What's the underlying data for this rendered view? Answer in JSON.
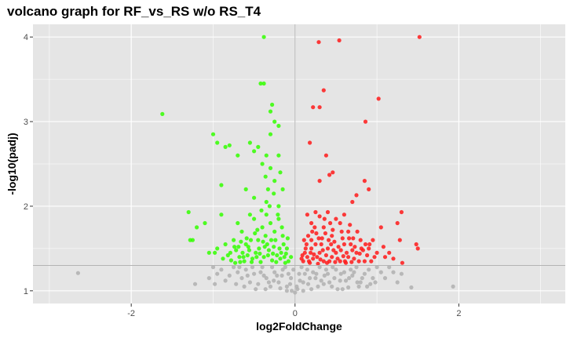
{
  "chart_data": {
    "type": "scatter",
    "title": "volcano graph for RF_vs_RS w/o RS_T4",
    "xlabel": "log2FoldChange",
    "ylabel": "-log10(padj)",
    "xlim": [
      -3.2,
      3.3
    ],
    "ylim": [
      0.85,
      4.15
    ],
    "x_ticks": [
      -2,
      0,
      2
    ],
    "y_ticks": [
      1,
      2,
      3,
      4
    ],
    "x_tick_labels": [
      "-2",
      "0",
      "2"
    ],
    "y_tick_labels": [
      "1",
      "2",
      "3",
      "4"
    ],
    "grid": true,
    "reference_lines": {
      "vertical_x": 0,
      "horizontal_y": 1.3
    },
    "colors": {
      "background": "#e5e5e5",
      "grid": "#ffffff",
      "reference": "#b3b3b3",
      "up": "#ff1a1a",
      "down": "#33ff00",
      "ns": "#b0b0b0"
    },
    "points": {
      "up": [
        [
          1.52,
          4.0
        ],
        [
          0.54,
          3.96
        ],
        [
          0.29,
          3.94
        ],
        [
          0.35,
          3.37
        ],
        [
          1.02,
          3.27
        ],
        [
          0.22,
          3.17
        ],
        [
          0.3,
          3.17
        ],
        [
          0.86,
          3.0
        ],
        [
          0.18,
          2.75
        ],
        [
          0.38,
          2.6
        ],
        [
          0.46,
          2.4
        ],
        [
          0.42,
          2.37
        ],
        [
          0.75,
          2.13
        ],
        [
          0.3,
          2.3
        ],
        [
          0.85,
          2.3
        ],
        [
          0.9,
          2.2
        ],
        [
          0.7,
          2.05
        ],
        [
          1.3,
          1.93
        ],
        [
          1.05,
          1.75
        ],
        [
          1.25,
          1.8
        ],
        [
          1.48,
          1.55
        ],
        [
          1.5,
          1.5
        ],
        [
          1.28,
          1.6
        ],
        [
          1.1,
          1.4
        ],
        [
          1.2,
          1.38
        ],
        [
          1.31,
          1.33
        ],
        [
          0.95,
          1.6
        ],
        [
          0.6,
          1.9
        ],
        [
          0.55,
          1.8
        ],
        [
          0.65,
          1.7
        ],
        [
          0.4,
          1.93
        ],
        [
          0.5,
          1.85
        ],
        [
          0.25,
          1.93
        ],
        [
          0.3,
          1.88
        ],
        [
          0.2,
          1.8
        ],
        [
          0.35,
          1.75
        ],
        [
          0.15,
          1.9
        ],
        [
          0.45,
          1.65
        ],
        [
          0.8,
          1.6
        ],
        [
          0.9,
          1.5
        ],
        [
          0.75,
          1.45
        ],
        [
          0.85,
          1.35
        ],
        [
          0.6,
          1.55
        ],
        [
          0.7,
          1.48
        ],
        [
          0.65,
          1.4
        ],
        [
          0.55,
          1.35
        ],
        [
          0.5,
          1.45
        ],
        [
          0.4,
          1.5
        ],
        [
          0.45,
          1.4
        ],
        [
          0.35,
          1.35
        ],
        [
          0.3,
          1.45
        ],
        [
          0.25,
          1.55
        ],
        [
          0.2,
          1.5
        ],
        [
          0.15,
          1.4
        ],
        [
          0.1,
          1.35
        ],
        [
          0.18,
          1.33
        ],
        [
          0.22,
          1.38
        ],
        [
          0.28,
          1.32
        ],
        [
          0.12,
          1.45
        ],
        [
          0.08,
          1.38
        ],
        [
          0.2,
          1.6
        ],
        [
          0.26,
          1.68
        ],
        [
          0.33,
          1.62
        ],
        [
          0.38,
          1.42
        ],
        [
          0.48,
          1.58
        ],
        [
          0.58,
          1.62
        ],
        [
          0.68,
          1.55
        ],
        [
          0.78,
          1.35
        ],
        [
          0.88,
          1.42
        ],
        [
          1.0,
          1.45
        ],
        [
          0.14,
          1.55
        ],
        [
          0.24,
          1.75
        ],
        [
          0.32,
          1.55
        ],
        [
          0.42,
          1.35
        ],
        [
          0.52,
          1.38
        ],
        [
          0.62,
          1.33
        ],
        [
          0.72,
          1.38
        ],
        [
          0.16,
          1.65
        ],
        [
          0.36,
          1.85
        ],
        [
          0.46,
          1.72
        ],
        [
          0.56,
          1.48
        ],
        [
          0.66,
          1.62
        ],
        [
          0.76,
          1.7
        ],
        [
          0.86,
          1.55
        ],
        [
          0.11,
          1.6
        ],
        [
          0.19,
          1.45
        ],
        [
          0.27,
          1.4
        ],
        [
          0.34,
          1.48
        ],
        [
          0.41,
          1.6
        ],
        [
          0.53,
          1.52
        ],
        [
          0.63,
          1.45
        ],
        [
          0.73,
          1.52
        ],
        [
          0.83,
          1.48
        ],
        [
          0.93,
          1.35
        ],
        [
          0.17,
          1.35
        ],
        [
          0.23,
          1.43
        ],
        [
          0.31,
          1.37
        ],
        [
          0.39,
          1.33
        ],
        [
          0.44,
          1.55
        ],
        [
          0.49,
          1.34
        ],
        [
          0.59,
          1.41
        ],
        [
          0.69,
          1.34
        ],
        [
          0.79,
          1.44
        ],
        [
          0.13,
          1.5
        ],
        [
          0.21,
          1.7
        ],
        [
          0.29,
          1.62
        ],
        [
          0.37,
          1.68
        ],
        [
          0.47,
          1.48
        ],
        [
          0.57,
          1.7
        ],
        [
          0.67,
          1.78
        ],
        [
          0.09,
          1.42
        ],
        [
          0.43,
          1.8
        ],
        [
          0.61,
          1.35
        ],
        [
          0.71,
          1.62
        ],
        [
          0.81,
          1.5
        ],
        [
          0.91,
          1.55
        ],
        [
          1.08,
          1.52
        ],
        [
          1.15,
          1.45
        ],
        [
          0.97,
          1.4
        ]
      ],
      "down": [
        [
          -0.38,
          4.0
        ],
        [
          -0.42,
          3.45
        ],
        [
          -0.38,
          3.45
        ],
        [
          -1.62,
          3.09
        ],
        [
          -0.28,
          3.2
        ],
        [
          -0.3,
          3.12
        ],
        [
          -0.25,
          3.0
        ],
        [
          -0.2,
          2.95
        ],
        [
          -0.3,
          2.85
        ],
        [
          -1.0,
          2.85
        ],
        [
          -0.95,
          2.75
        ],
        [
          -0.85,
          2.7
        ],
        [
          -0.8,
          2.72
        ],
        [
          -0.7,
          2.6
        ],
        [
          -0.55,
          2.75
        ],
        [
          -0.5,
          2.65
        ],
        [
          -0.45,
          2.7
        ],
        [
          -0.35,
          2.6
        ],
        [
          -0.2,
          2.6
        ],
        [
          -0.4,
          2.5
        ],
        [
          -0.3,
          2.45
        ],
        [
          -0.25,
          2.3
        ],
        [
          -0.15,
          2.2
        ],
        [
          -0.9,
          2.25
        ],
        [
          -0.6,
          2.2
        ],
        [
          -0.5,
          2.1
        ],
        [
          -0.35,
          2.05
        ],
        [
          -0.2,
          2.0
        ],
        [
          -1.3,
          1.93
        ],
        [
          -0.9,
          1.9
        ],
        [
          -1.1,
          1.8
        ],
        [
          -1.2,
          1.75
        ],
        [
          -1.25,
          1.6
        ],
        [
          -1.28,
          1.6
        ],
        [
          -0.98,
          1.45
        ],
        [
          -1.05,
          1.45
        ],
        [
          -0.95,
          1.5
        ],
        [
          -0.85,
          1.55
        ],
        [
          -0.75,
          1.6
        ],
        [
          -0.7,
          1.8
        ],
        [
          -0.65,
          1.7
        ],
        [
          -0.6,
          1.55
        ],
        [
          -0.55,
          1.9
        ],
        [
          -0.5,
          1.85
        ],
        [
          -0.45,
          1.6
        ],
        [
          -0.4,
          1.75
        ],
        [
          -0.35,
          1.9
        ],
        [
          -0.3,
          1.8
        ],
        [
          -0.25,
          1.7
        ],
        [
          -0.2,
          1.85
        ],
        [
          -0.15,
          1.65
        ],
        [
          -0.1,
          1.5
        ],
        [
          -0.05,
          1.4
        ],
        [
          -0.08,
          1.35
        ],
        [
          -0.12,
          1.33
        ],
        [
          -0.18,
          1.38
        ],
        [
          -0.22,
          1.42
        ],
        [
          -0.28,
          1.36
        ],
        [
          -0.32,
          1.48
        ],
        [
          -0.38,
          1.4
        ],
        [
          -0.42,
          1.34
        ],
        [
          -0.48,
          1.45
        ],
        [
          -0.52,
          1.38
        ],
        [
          -0.58,
          1.42
        ],
        [
          -0.62,
          1.35
        ],
        [
          -0.68,
          1.4
        ],
        [
          -0.72,
          1.48
        ],
        [
          -0.78,
          1.36
        ],
        [
          -0.82,
          1.42
        ],
        [
          -0.88,
          1.38
        ],
        [
          -0.14,
          1.55
        ],
        [
          -0.24,
          1.6
        ],
        [
          -0.34,
          1.55
        ],
        [
          -0.44,
          1.5
        ],
        [
          -0.54,
          1.6
        ],
        [
          -0.64,
          1.45
        ],
        [
          -0.74,
          1.52
        ],
        [
          -0.16,
          1.75
        ],
        [
          -0.26,
          1.52
        ],
        [
          -0.36,
          1.65
        ],
        [
          -0.46,
          1.72
        ],
        [
          -0.56,
          1.48
        ],
        [
          -0.66,
          1.58
        ],
        [
          -0.11,
          1.44
        ],
        [
          -0.19,
          1.5
        ],
        [
          -0.29,
          1.6
        ],
        [
          -0.39,
          1.58
        ],
        [
          -0.49,
          1.68
        ],
        [
          -0.59,
          1.62
        ],
        [
          -0.69,
          1.52
        ],
        [
          -0.79,
          1.45
        ],
        [
          -0.09,
          1.62
        ],
        [
          -0.17,
          1.45
        ],
        [
          -0.27,
          1.44
        ],
        [
          -0.37,
          1.52
        ],
        [
          -0.47,
          1.4
        ],
        [
          -0.57,
          1.52
        ],
        [
          -0.67,
          1.34
        ],
        [
          -0.13,
          1.4
        ],
        [
          -0.23,
          1.34
        ],
        [
          -0.33,
          1.42
        ],
        [
          -0.43,
          1.44
        ],
        [
          -0.53,
          1.34
        ],
        [
          -0.63,
          1.4
        ],
        [
          -0.73,
          1.33
        ],
        [
          -0.21,
          1.9
        ],
        [
          -0.31,
          2.0
        ],
        [
          -0.41,
          1.95
        ],
        [
          -0.26,
          2.15
        ],
        [
          -0.36,
          2.35
        ],
        [
          -0.18,
          2.4
        ],
        [
          -0.33,
          2.2
        ]
      ],
      "ns": [
        [
          -2.65,
          1.21
        ],
        [
          -1.22,
          1.08
        ],
        [
          1.93,
          1.05
        ],
        [
          1.42,
          1.04
        ],
        [
          1.3,
          1.2
        ],
        [
          1.15,
          1.28
        ],
        [
          1.05,
          1.22
        ],
        [
          -0.9,
          1.25
        ],
        [
          -0.8,
          1.18
        ],
        [
          -0.75,
          1.28
        ],
        [
          -0.7,
          1.22
        ],
        [
          -0.65,
          1.15
        ],
        [
          -0.6,
          1.25
        ],
        [
          -0.55,
          1.1
        ],
        [
          -0.5,
          1.2
        ],
        [
          -0.45,
          1.08
        ],
        [
          -0.4,
          1.28
        ],
        [
          -0.35,
          1.15
        ],
        [
          -0.3,
          1.05
        ],
        [
          -0.25,
          1.22
        ],
        [
          -0.2,
          1.1
        ],
        [
          -0.15,
          1.25
        ],
        [
          -0.1,
          1.05
        ],
        [
          -0.05,
          1.15
        ],
        [
          -0.02,
          1.25
        ],
        [
          0.02,
          1.05
        ],
        [
          0.05,
          1.2
        ],
        [
          0.1,
          1.1
        ],
        [
          0.15,
          1.25
        ],
        [
          0.2,
          1.02
        ],
        [
          0.25,
          1.15
        ],
        [
          0.3,
          1.28
        ],
        [
          0.35,
          1.08
        ],
        [
          0.4,
          1.2
        ],
        [
          0.45,
          1.05
        ],
        [
          0.5,
          1.25
        ],
        [
          0.55,
          1.12
        ],
        [
          0.6,
          1.22
        ],
        [
          0.65,
          1.04
        ],
        [
          0.7,
          1.18
        ],
        [
          0.75,
          1.28
        ],
        [
          0.8,
          1.1
        ],
        [
          0.85,
          1.2
        ],
        [
          0.9,
          1.25
        ],
        [
          0.95,
          1.15
        ],
        [
          1.0,
          1.28
        ],
        [
          -0.85,
          1.12
        ],
        [
          -0.95,
          1.2
        ],
        [
          -1.0,
          1.28
        ],
        [
          -0.62,
          1.05
        ],
        [
          -0.48,
          1.02
        ],
        [
          -0.38,
          1.18
        ],
        [
          -0.28,
          1.28
        ],
        [
          -0.18,
          1.03
        ],
        [
          -0.08,
          1.2
        ],
        [
          0.08,
          1.28
        ],
        [
          0.18,
          1.15
        ],
        [
          0.28,
          1.05
        ],
        [
          0.38,
          1.25
        ],
        [
          0.48,
          1.15
        ],
        [
          0.58,
          1.02
        ],
        [
          0.68,
          1.25
        ],
        [
          0.78,
          1.05
        ],
        [
          -0.72,
          1.08
        ],
        [
          -0.58,
          1.18
        ],
        [
          -0.42,
          1.22
        ],
        [
          -0.32,
          1.1
        ],
        [
          -0.22,
          1.18
        ],
        [
          -0.12,
          1.28
        ],
        [
          0.12,
          1.2
        ],
        [
          0.22,
          1.22
        ],
        [
          0.32,
          1.12
        ],
        [
          0.42,
          1.1
        ],
        [
          0.52,
          1.02
        ],
        [
          0.62,
          1.12
        ],
        [
          0.72,
          1.22
        ],
        [
          0.82,
          1.15
        ],
        [
          0.92,
          1.08
        ],
        [
          -0.52,
          1.28
        ],
        [
          -0.36,
          1.02
        ],
        [
          -0.26,
          1.12
        ],
        [
          -0.16,
          1.18
        ],
        [
          -0.06,
          1.08
        ],
        [
          0.06,
          1.12
        ],
        [
          0.16,
          1.08
        ],
        [
          0.26,
          1.2
        ],
        [
          0.36,
          1.18
        ],
        [
          0.46,
          1.28
        ],
        [
          0.56,
          1.2
        ],
        [
          0.66,
          1.15
        ],
        [
          0.76,
          1.1
        ],
        [
          -0.04,
          1.0
        ],
        [
          0.0,
          0.98
        ],
        [
          0.03,
          1.02
        ],
        [
          -0.1,
          1.0
        ],
        [
          0.1,
          1.0
        ],
        [
          1.1,
          1.15
        ],
        [
          1.2,
          1.22
        ],
        [
          -1.05,
          1.15
        ],
        [
          -0.98,
          1.08
        ],
        [
          0.98,
          1.1
        ],
        [
          1.25,
          1.1
        ],
        [
          -0.68,
          1.28
        ],
        [
          0.88,
          1.05
        ]
      ]
    }
  }
}
